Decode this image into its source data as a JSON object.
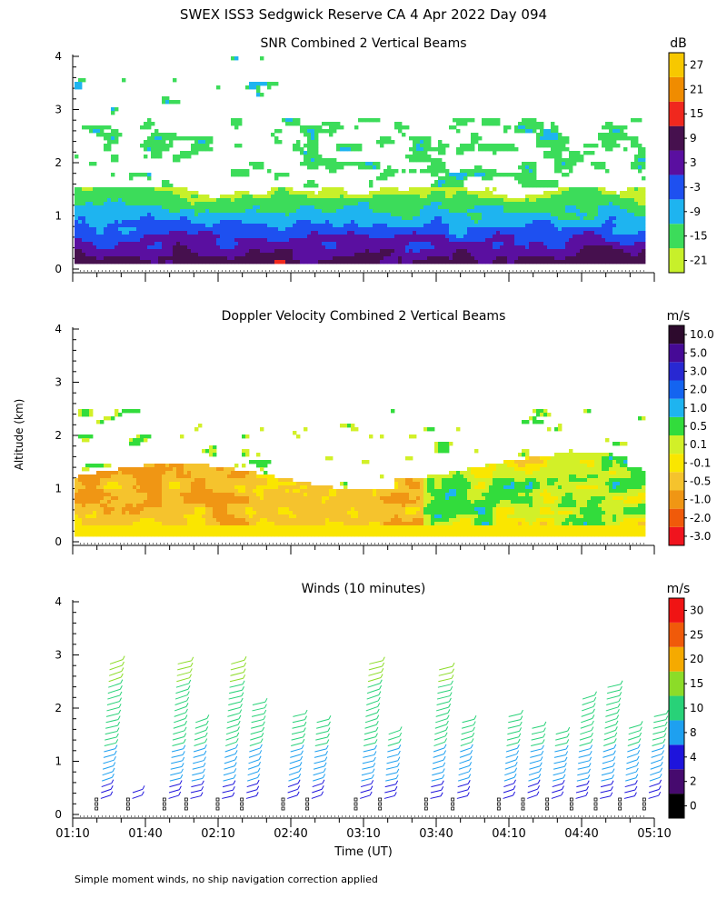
{
  "figure": {
    "title": "SWEX ISS3 Sedgwick Reserve CA    4 Apr 2022 Day 094",
    "y_axis_label": "Altitude (km)",
    "x_axis_label": "Time (UT)",
    "footnote": "Simple moment winds, no ship navigation correction applied"
  },
  "chart_data": [
    {
      "type": "heatmap",
      "title": "SNR Combined 2 Vertical Beams",
      "ylabel": "Altitude (km)",
      "ylim": [
        0,
        4
      ],
      "y_ticks": [
        0,
        1,
        2,
        3,
        4
      ],
      "xlim": [
        "01:10",
        "05:10"
      ],
      "colorbar": {
        "unit": "dB",
        "labels": [
          "-21",
          "-15",
          "-9",
          "-3",
          "3",
          "9",
          "15",
          "21",
          "27"
        ],
        "colors": [
          "#c8f02a",
          "#3cdc5a",
          "#1eb4f0",
          "#1e50f0",
          "#5a0fa0",
          "#46104e",
          "#f0281e",
          "#f08c00",
          "#f7c800"
        ]
      }
    },
    {
      "type": "heatmap",
      "title": "Doppler Velocity Combined 2 Vertical Beams",
      "ylabel": "Altitude (km)",
      "ylim": [
        0,
        4
      ],
      "y_ticks": [
        0,
        1,
        2,
        3,
        4
      ],
      "xlim": [
        "01:10",
        "05:10"
      ],
      "colorbar": {
        "unit": "m/s",
        "labels": [
          "-3.0",
          "-2.0",
          "-1.0",
          "-0.5",
          "-0.1",
          "0.1",
          "0.5",
          "1.0",
          "2.0",
          "3.0",
          "5.0",
          "10.0"
        ],
        "colors": [
          "#f0141e",
          "#f05a0a",
          "#f09614",
          "#f5c32d",
          "#fae600",
          "#d2f028",
          "#32dc3c",
          "#1eb4f0",
          "#1464f0",
          "#2828d2",
          "#460a96",
          "#2d0a2d"
        ]
      }
    },
    {
      "type": "scatter",
      "title": "Winds (10 minutes)",
      "ylabel": "Altitude (km)",
      "xlabel": "Time (UT)",
      "ylim": [
        0,
        4
      ],
      "y_ticks": [
        0,
        1,
        2,
        3,
        4
      ],
      "x_ticks": [
        "01:10",
        "01:40",
        "02:10",
        "02:40",
        "03:10",
        "03:40",
        "04:10",
        "04:40",
        "05:10"
      ],
      "colorbar": {
        "unit": "m/s",
        "labels": [
          "0",
          "2",
          "4",
          "8",
          "10",
          "15",
          "20",
          "25",
          "30"
        ],
        "colors": [
          "#000000",
          "#460a6e",
          "#1e14dc",
          "#1ea0f0",
          "#28d278",
          "#8cdc28",
          "#f5aa00",
          "#f05a0a",
          "#f01414"
        ]
      },
      "profiles": [
        {
          "time": "01:20",
          "top_km": 2.85
        },
        {
          "time": "01:33",
          "top_km": 0.5
        },
        {
          "time": "01:48",
          "top_km": 2.9
        },
        {
          "time": "01:57",
          "top_km": 1.8
        },
        {
          "time": "02:10",
          "top_km": 2.9
        },
        {
          "time": "02:20",
          "top_km": 2.1
        },
        {
          "time": "02:37",
          "top_km": 1.9
        },
        {
          "time": "02:47",
          "top_km": 1.75
        },
        {
          "time": "03:07",
          "top_km": 2.85
        },
        {
          "time": "03:17",
          "top_km": 1.6
        },
        {
          "time": "03:36",
          "top_km": 2.75
        },
        {
          "time": "03:47",
          "top_km": 1.75
        },
        {
          "time": "04:06",
          "top_km": 1.9
        },
        {
          "time": "04:16",
          "top_km": 1.65
        },
        {
          "time": "04:26",
          "top_km": 1.6
        },
        {
          "time": "04:36",
          "top_km": 2.25
        },
        {
          "time": "04:46",
          "top_km": 2.45
        },
        {
          "time": "04:56",
          "top_km": 1.65
        },
        {
          "time": "05:06",
          "top_km": 1.85
        }
      ]
    }
  ]
}
